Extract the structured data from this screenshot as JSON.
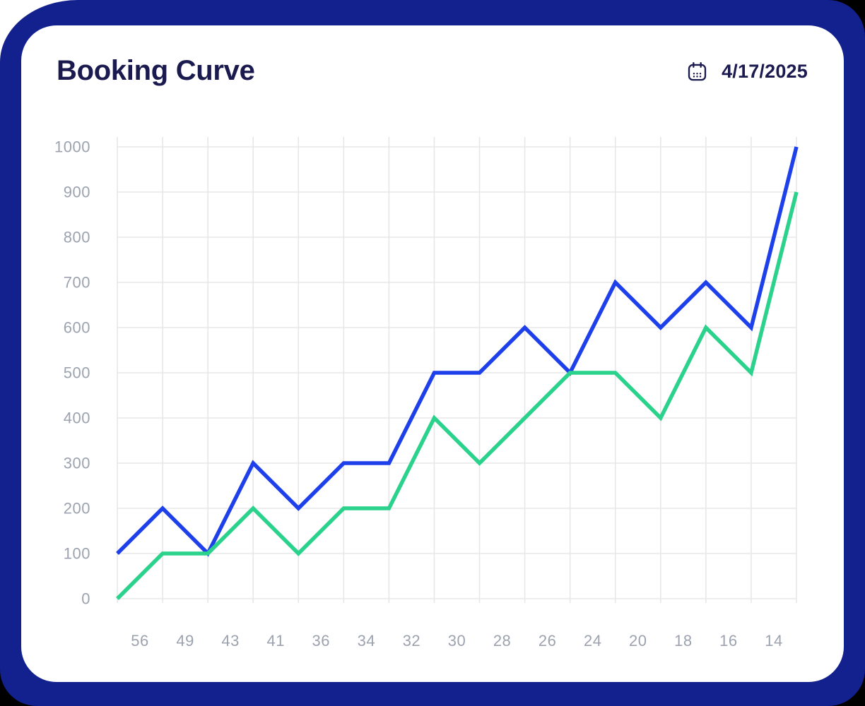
{
  "header": {
    "title": "Booking Curve",
    "date": "4/17/2025"
  },
  "colors": {
    "page_backdrop": "#000000",
    "corner_backdrop": "#FFFFFF",
    "frame": "#13218F",
    "card": "#FFFFFF",
    "heading_text": "#1B1A4E",
    "axis_label": "#9CA3AF",
    "gridline": "#E7E7E7",
    "series_blue": "#1E40EB",
    "series_green": "#2BD28C"
  },
  "chart_data": {
    "type": "line",
    "title": "Booking Curve",
    "x_tick_labels": [
      "56",
      "49",
      "43",
      "41",
      "36",
      "34",
      "32",
      "30",
      "28",
      "26",
      "24",
      "20",
      "18",
      "16",
      "14"
    ],
    "x_labels_between_gridlines": true,
    "y_ticks": [
      0,
      100,
      200,
      300,
      400,
      500,
      600,
      700,
      800,
      900,
      1000
    ],
    "ylim": [
      0,
      1000
    ],
    "grid": true,
    "legend": false,
    "series": [
      {
        "name": "series-1-blue",
        "color": "#1E40EB",
        "values": [
          100,
          200,
          100,
          300,
          200,
          300,
          300,
          500,
          500,
          600,
          500,
          700,
          600,
          700,
          600,
          1000
        ]
      },
      {
        "name": "series-2-green",
        "color": "#2BD28C",
        "values": [
          0,
          100,
          100,
          200,
          100,
          200,
          200,
          400,
          300,
          400,
          500,
          500,
          400,
          600,
          500,
          900
        ]
      }
    ]
  }
}
